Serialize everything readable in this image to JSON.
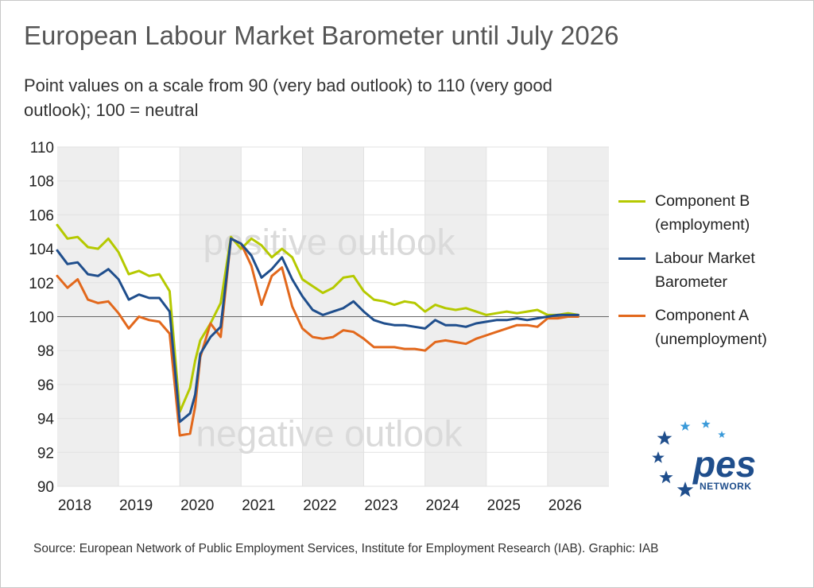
{
  "header": {
    "title": "European Labour Market Barometer until July 2026",
    "subtitle": "Point values on a scale from 90 (very bad outlook) to 110 (very good outlook); 100 = neutral"
  },
  "footer": {
    "source": "Source: European Network of Public Employment Services, Institute for Employment Research (IAB). Graphic: IAB"
  },
  "legend": {
    "items": [
      {
        "label": "Component B (employment)",
        "color": "#b5c900"
      },
      {
        "label": "Labour Market Barometer",
        "color": "#1f4e8c"
      },
      {
        "label": "Component A (unemployment)",
        "color": "#e2681c"
      }
    ]
  },
  "logo": {
    "text": "pes",
    "subtext": "NETWORK",
    "color": "#1f4e8c"
  },
  "chart_data": {
    "type": "line",
    "annotations": [
      "positive outlook",
      "negative outlook"
    ],
    "ylim": [
      90,
      110
    ],
    "y_ticks": [
      90,
      92,
      94,
      96,
      98,
      100,
      102,
      104,
      106,
      108,
      110
    ],
    "reference_line": 100,
    "x_range": [
      "2018-01",
      "2026-12"
    ],
    "x_tick_labels": [
      "2018",
      "2019",
      "2020",
      "2021",
      "2022",
      "2023",
      "2024",
      "2025",
      "2026"
    ],
    "grid": true,
    "alternating_year_shading": true,
    "x": [
      "2018-01",
      "2018-03",
      "2018-05",
      "2018-07",
      "2018-09",
      "2018-11",
      "2019-01",
      "2019-03",
      "2019-05",
      "2019-07",
      "2019-09",
      "2019-11",
      "2020-01",
      "2020-03",
      "2020-04",
      "2020-05",
      "2020-07",
      "2020-09",
      "2020-11",
      "2021-01",
      "2021-03",
      "2021-05",
      "2021-07",
      "2021-09",
      "2021-11",
      "2022-01",
      "2022-03",
      "2022-05",
      "2022-07",
      "2022-09",
      "2022-11",
      "2023-01",
      "2023-03",
      "2023-05",
      "2023-07",
      "2023-09",
      "2023-11",
      "2024-01",
      "2024-03",
      "2024-05",
      "2024-07",
      "2024-09",
      "2024-11",
      "2025-01",
      "2025-03",
      "2025-05",
      "2025-07",
      "2025-09",
      "2025-11",
      "2026-01",
      "2026-03",
      "2026-05",
      "2026-07"
    ],
    "series": [
      {
        "name": "Component B (employment)",
        "color": "#b5c900",
        "values": [
          105.4,
          104.6,
          104.7,
          104.1,
          104.0,
          104.6,
          103.8,
          102.5,
          102.7,
          102.4,
          102.5,
          101.5,
          94.4,
          95.8,
          97.4,
          98.6,
          99.6,
          100.8,
          104.7,
          104.0,
          104.6,
          104.2,
          103.5,
          104.0,
          103.5,
          102.2,
          101.8,
          101.4,
          101.7,
          102.3,
          102.4,
          101.5,
          101.0,
          100.9,
          100.7,
          100.9,
          100.8,
          100.3,
          100.7,
          100.5,
          100.4,
          100.5,
          100.3,
          100.1,
          100.2,
          100.3,
          100.2,
          100.3,
          100.4,
          100.1,
          100.1,
          100.2,
          100.1
        ]
      },
      {
        "name": "Labour Market Barometer",
        "color": "#1f4e8c",
        "values": [
          103.9,
          103.1,
          103.2,
          102.5,
          102.4,
          102.8,
          102.2,
          101.0,
          101.3,
          101.1,
          101.1,
          100.3,
          93.8,
          94.3,
          95.4,
          97.8,
          98.8,
          99.4,
          104.6,
          104.3,
          103.6,
          102.3,
          102.8,
          103.5,
          102.2,
          101.2,
          100.4,
          100.1,
          100.3,
          100.5,
          100.9,
          100.3,
          99.8,
          99.6,
          99.5,
          99.5,
          99.4,
          99.3,
          99.8,
          99.5,
          99.5,
          99.4,
          99.6,
          99.7,
          99.8,
          99.8,
          99.9,
          99.8,
          99.9,
          100.0,
          100.1,
          100.1,
          100.1
        ]
      },
      {
        "name": "Component A (unemployment)",
        "color": "#e2681c",
        "values": [
          102.4,
          101.7,
          102.2,
          101.0,
          100.8,
          100.9,
          100.2,
          99.3,
          100.0,
          99.8,
          99.7,
          99.0,
          93.0,
          93.1,
          94.7,
          97.6,
          99.6,
          98.8,
          104.6,
          104.3,
          103.0,
          100.7,
          102.4,
          102.9,
          100.6,
          99.3,
          98.8,
          98.7,
          98.8,
          99.2,
          99.1,
          98.7,
          98.2,
          98.2,
          98.2,
          98.1,
          98.1,
          98.0,
          98.5,
          98.6,
          98.5,
          98.4,
          98.7,
          98.9,
          99.1,
          99.3,
          99.5,
          99.5,
          99.4,
          99.9,
          99.9,
          100.0,
          100.0
        ]
      }
    ]
  }
}
